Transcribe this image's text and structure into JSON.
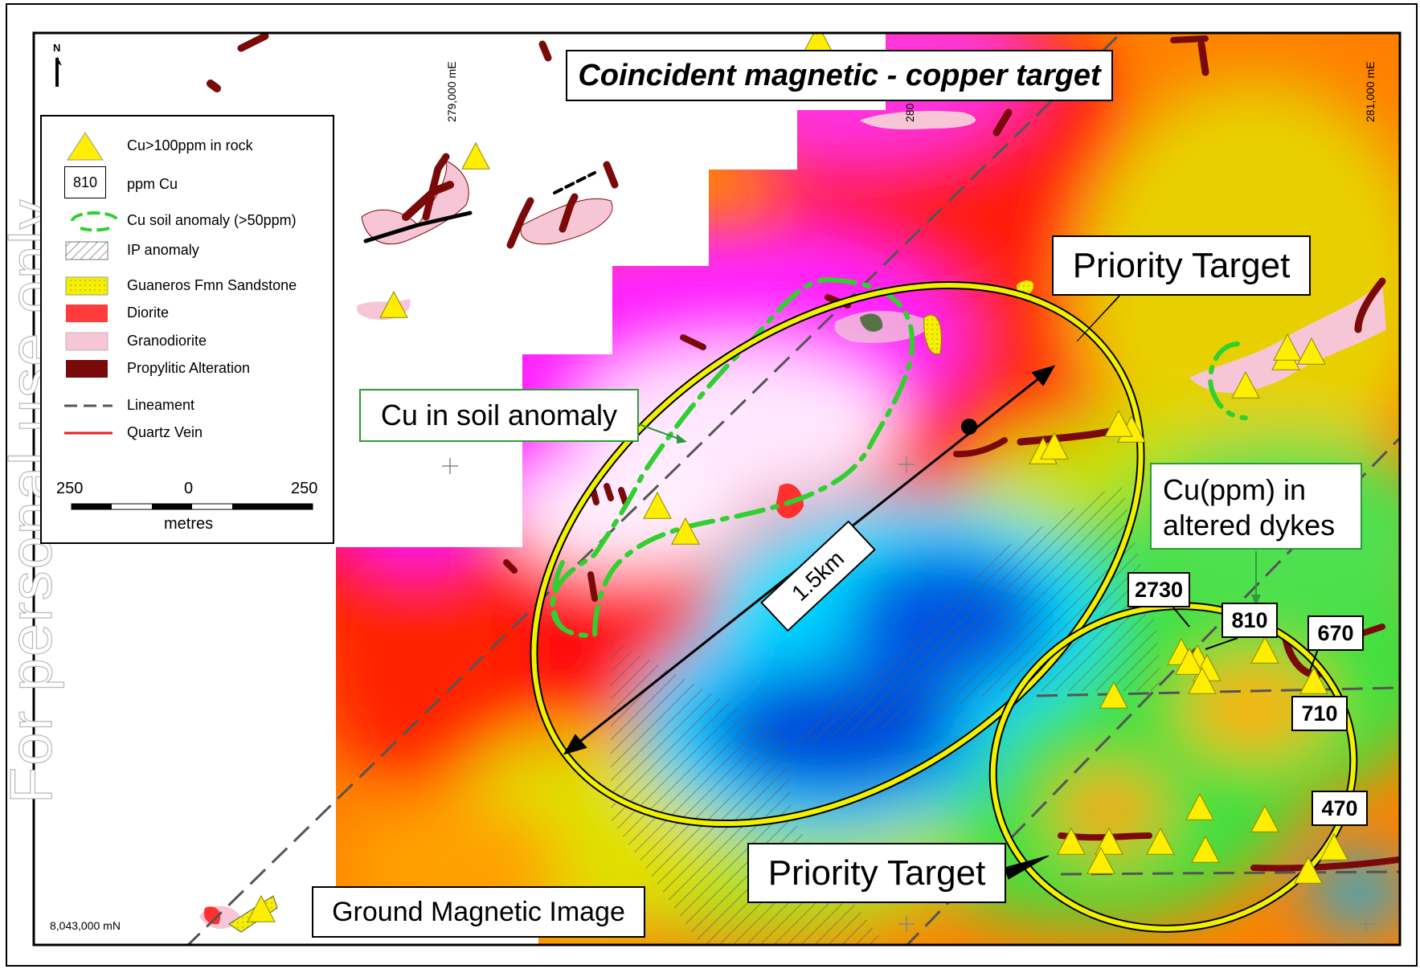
{
  "title": "Coincident magnetic - copper target",
  "watermark": "For personal use only",
  "map_labels": {
    "cu_soil_anomaly": "Cu in soil anomaly",
    "priority_target_upper": "Priority Target",
    "priority_target_lower": "Priority Target",
    "ground_magnetic_image": "Ground Magnetic Image",
    "cu_ppm_note": "Cu(ppm) in altered dykes",
    "distance": "1.5km"
  },
  "sample_values": [
    "2730",
    "810",
    "670",
    "710",
    "470"
  ],
  "coordinates": {
    "easting_1": "279,000 mE",
    "easting_2": "280",
    "easting_3": "281,000 mE",
    "northing": "8,043,000 mN"
  },
  "north_arrow": "N",
  "legend": {
    "items": [
      {
        "symbol": "yellow-triangle",
        "label": "Cu>100ppm in rock"
      },
      {
        "symbol": "value-box",
        "symbol_text": "810",
        "label": "ppm Cu"
      },
      {
        "symbol": "green-dashed-ring",
        "label": "Cu soil anomaly (>50ppm)"
      },
      {
        "symbol": "hatch",
        "label": "IP anomaly"
      },
      {
        "symbol": "yellow-fill",
        "label": "Guaneros Fmn Sandstone"
      },
      {
        "symbol": "red-fill",
        "label": "Diorite"
      },
      {
        "symbol": "pink-fill",
        "label": "Granodiorite"
      },
      {
        "symbol": "maroon-fill",
        "label": "Propylitic Alteration"
      },
      {
        "symbol": "dashed-line",
        "label": "Lineament"
      },
      {
        "symbol": "red-line",
        "label": "Quartz Vein"
      }
    ],
    "scale": {
      "left": "250",
      "middle": "0",
      "right": "250",
      "unit": "metres"
    }
  },
  "colors": {
    "magenta": "#ff00ff",
    "red": "#ff1a1a",
    "orange": "#ff8c00",
    "yellow": "#ffee00",
    "green": "#3ddc3d",
    "cyan": "#00e5ff",
    "blue": "#0055dd",
    "granodiorite": "#f7c6d6",
    "alteration": "#7a0a0a",
    "soil_anomaly": "#2fd02f",
    "target_ellipse": "#e8e800"
  }
}
